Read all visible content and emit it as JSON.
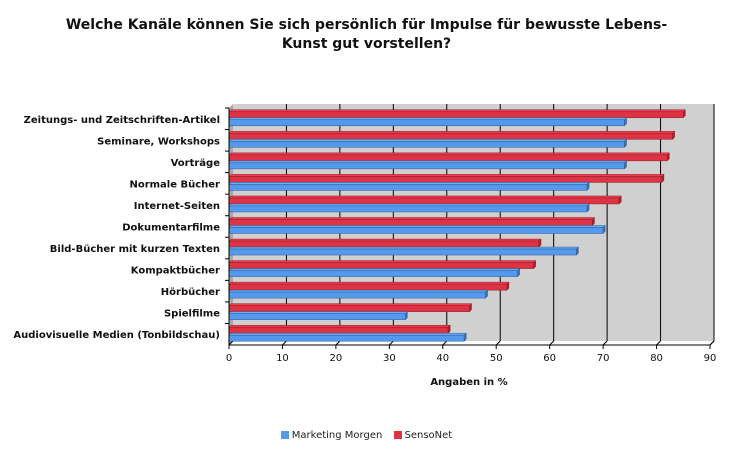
{
  "chart_data": {
    "type": "bar",
    "orientation": "horizontal",
    "title_lines": [
      "Welche Kanäle können Sie sich persönlich für Impulse für bewusste Lebens-",
      "Kunst gut vorstellen?"
    ],
    "xlabel": "Angaben in %",
    "ylabel": "",
    "xlim": [
      0,
      90
    ],
    "ticks": [
      "0",
      "10",
      "20",
      "30",
      "40",
      "50",
      "60",
      "70",
      "80",
      "90"
    ],
    "grid": true,
    "legend_position": "bottom",
    "categories": [
      "Zeitungs- und Zeitschriften-Artikel",
      "Seminare, Workshops",
      "Vorträge",
      "Normale Bücher",
      "Internet-Seiten",
      "Dokumentarfilme",
      "Bild-Bücher mit kurzen Texten",
      "Kompaktbücher",
      "Hörbücher",
      "Spielfilme",
      "Audiovisuelle Medien (Tonbildschau)"
    ],
    "series": [
      {
        "name": "Marketing Morgen",
        "color": "#5599ee",
        "values": [
          74,
          74,
          74,
          67,
          67,
          70,
          65,
          54,
          48,
          33,
          44
        ]
      },
      {
        "name": "SensoNet",
        "color": "#dd3344",
        "values": [
          85,
          83,
          82,
          81,
          73,
          68,
          58,
          57,
          52,
          45,
          41
        ]
      }
    ],
    "plot_background": "#d0d0d0"
  }
}
